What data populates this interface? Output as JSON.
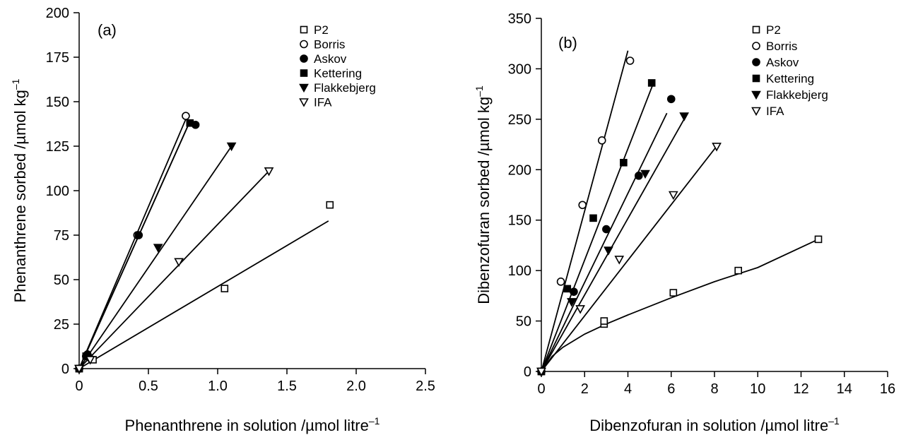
{
  "chart_data": [
    {
      "type": "scatter",
      "panel_label": "(a)",
      "title": "",
      "xlabel": "Phenanthrene in solution /µmol litre",
      "xlabel_sup": "–1",
      "ylabel": "Phenanthrene sorbed /µmol kg",
      "ylabel_sup": "–1",
      "xlim": [
        0,
        2.5
      ],
      "ylim": [
        0,
        200
      ],
      "xticks": [
        0,
        0.5,
        1.0,
        1.5,
        2.0,
        2.5
      ],
      "xtick_labels": [
        "0",
        "0.5",
        "1.0",
        "1.5",
        "2.0",
        "2.5"
      ],
      "yticks": [
        0,
        25,
        50,
        75,
        100,
        125,
        150,
        175,
        200
      ],
      "ytick_labels": [
        "0",
        "25",
        "50",
        "75",
        "100",
        "125",
        "150",
        "175",
        "200"
      ],
      "legend_position": "top-right",
      "series": [
        {
          "name": "P2",
          "marker": "square-open",
          "x": [
            0.0,
            0.1,
            1.05,
            1.81
          ],
          "y": [
            0,
            5,
            45,
            92
          ],
          "fit_x": [
            0,
            1.8
          ],
          "fit_y": [
            0,
            83
          ]
        },
        {
          "name": "Borris",
          "marker": "circle-open",
          "x": [
            0.0,
            0.05,
            0.42,
            0.77
          ],
          "y": [
            0,
            7,
            75,
            142
          ],
          "fit_x": [
            0,
            0.78
          ],
          "fit_y": [
            0,
            142
          ]
        },
        {
          "name": "Askov",
          "marker": "circle-filled",
          "x": [
            0.0,
            0.06,
            0.43,
            0.84
          ],
          "y": [
            0,
            8,
            75,
            137
          ],
          "fit_x": [
            0,
            0.8
          ],
          "fit_y": [
            0,
            139
          ]
        },
        {
          "name": "Kettering",
          "marker": "square-filled",
          "x": [
            0.0,
            0.05,
            0.8
          ],
          "y": [
            0,
            7,
            138
          ],
          "fit_x": [
            0,
            0.8
          ],
          "fit_y": [
            0,
            139
          ]
        },
        {
          "name": "Flakkebjerg",
          "marker": "triangle-down-filled",
          "x": [
            0.0,
            0.07,
            0.57,
            1.1
          ],
          "y": [
            0,
            6,
            68,
            125
          ],
          "fit_x": [
            0,
            1.1
          ],
          "fit_y": [
            0,
            125
          ]
        },
        {
          "name": "IFA",
          "marker": "triangle-down-open",
          "x": [
            0.0,
            0.08,
            0.72,
            1.37
          ],
          "y": [
            0,
            5,
            60,
            111
          ],
          "fit_x": [
            0,
            1.37
          ],
          "fit_y": [
            0,
            111
          ]
        }
      ]
    },
    {
      "type": "scatter",
      "panel_label": "(b)",
      "title": "",
      "xlabel": "Dibenzofuran in solution /µmol litre",
      "xlabel_sup": "–1",
      "ylabel": "Dibenzofuran sorbed /µmol kg",
      "ylabel_sup": "–1",
      "xlim": [
        0,
        16
      ],
      "ylim": [
        0,
        350
      ],
      "xticks": [
        0,
        2,
        4,
        6,
        8,
        10,
        12,
        14,
        16
      ],
      "xtick_labels": [
        "0",
        "2",
        "4",
        "6",
        "8",
        "10",
        "12",
        "14",
        "16"
      ],
      "yticks": [
        0,
        50,
        100,
        150,
        200,
        250,
        300,
        350
      ],
      "ytick_labels": [
        "0",
        "50",
        "100",
        "150",
        "200",
        "250",
        "300",
        "350"
      ],
      "legend_position": "top-right",
      "series": [
        {
          "name": "P2",
          "marker": "square-open",
          "x": [
            0.0,
            2.9,
            2.9,
            6.1,
            9.1,
            12.8
          ],
          "y": [
            0,
            47,
            50,
            78,
            100,
            131
          ],
          "fit_x": [
            0,
            0.5,
            1,
            2,
            3,
            4,
            6,
            8,
            10,
            12.8
          ],
          "fit_y": [
            0,
            15,
            24,
            37,
            47,
            56,
            73,
            89,
            103,
            131
          ]
        },
        {
          "name": "Borris",
          "marker": "circle-open",
          "x": [
            0.0,
            0.9,
            1.9,
            2.8,
            4.1
          ],
          "y": [
            0,
            89,
            165,
            229,
            308
          ],
          "fit_x": [
            0,
            4.0
          ],
          "fit_y": [
            0,
            318
          ]
        },
        {
          "name": "Askov",
          "marker": "circle-filled",
          "x": [
            0.0,
            1.5,
            3.0,
            4.5,
            6.0
          ],
          "y": [
            0,
            79,
            141,
            194,
            270
          ],
          "fit_x": [
            0,
            5.8
          ],
          "fit_y": [
            0,
            256
          ]
        },
        {
          "name": "Kettering",
          "marker": "square-filled",
          "x": [
            0.0,
            1.2,
            2.4,
            3.8,
            5.1
          ],
          "y": [
            0,
            82,
            152,
            207,
            286
          ],
          "fit_x": [
            0,
            5.2
          ],
          "fit_y": [
            0,
            287
          ]
        },
        {
          "name": "Flakkebjerg",
          "marker": "triangle-down-filled",
          "x": [
            0.0,
            1.4,
            3.1,
            4.8,
            6.6
          ],
          "y": [
            0,
            69,
            120,
            196,
            253
          ],
          "fit_x": [
            0,
            6.7
          ],
          "fit_y": [
            0,
            254
          ]
        },
        {
          "name": "IFA",
          "marker": "triangle-down-open",
          "x": [
            0.0,
            1.8,
            3.6,
            6.1,
            8.1
          ],
          "y": [
            0,
            62,
            111,
            175,
            223
          ],
          "fit_x": [
            0,
            8.2
          ],
          "fit_y": [
            0,
            226
          ]
        }
      ]
    }
  ]
}
